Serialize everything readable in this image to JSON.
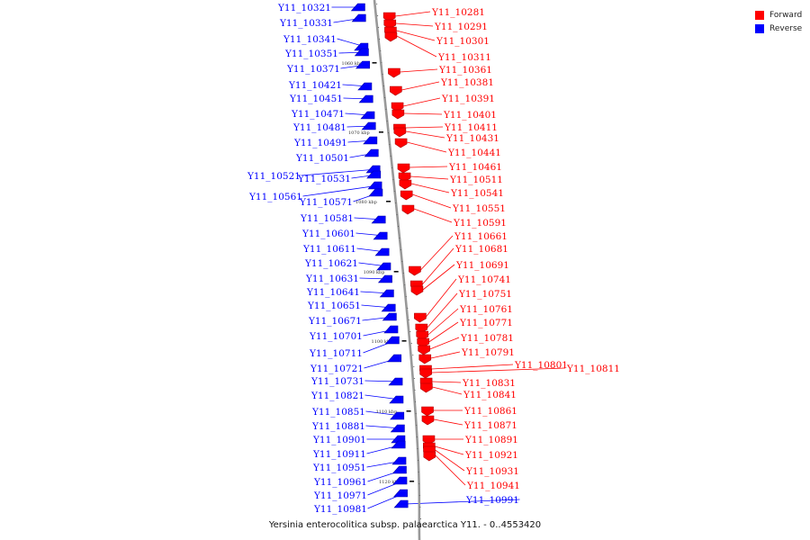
{
  "legend": {
    "forward_label": "Forward",
    "reverse_label": "Reverse",
    "forward_color": "#ff0000",
    "reverse_color": "#0000ff"
  },
  "caption": "Yersinia enterocolitica subsp. palaearctica Y11. - 0..4553420",
  "axis": {
    "tick_labels": [
      "1060 kbp",
      "1070 kbp",
      "1080 kbp",
      "1090 kbp",
      "1100 kbp",
      "1110 kbp",
      "1120 kbp"
    ],
    "backbone_color": "#999999"
  },
  "genes": {
    "reverse": [
      "Y11_10321",
      "Y11_10331",
      "Y11_10341",
      "Y11_10351",
      "Y11_10371",
      "Y11_10421",
      "Y11_10451",
      "Y11_10471",
      "Y11_10481",
      "Y11_10491",
      "Y11_10501",
      "Y11_10521",
      "Y11_10531",
      "Y11_10561",
      "Y11_10571",
      "Y11_10581",
      "Y11_10601",
      "Y11_10611",
      "Y11_10621",
      "Y11_10631",
      "Y11_10641",
      "Y11_10651",
      "Y11_10671",
      "Y11_10701",
      "Y11_10711",
      "Y11_10721",
      "Y11_10731",
      "Y11_10821",
      "Y11_10851",
      "Y11_10881",
      "Y11_10901",
      "Y11_10911",
      "Y11_10951",
      "Y11_10961",
      "Y11_10971",
      "Y11_10981",
      "Y11_10991"
    ],
    "forward": [
      "Y11_10281",
      "Y11_10291",
      "Y11_10301",
      "Y11_10311",
      "Y11_10361",
      "Y11_10381",
      "Y11_10391",
      "Y11_10401",
      "Y11_10411",
      "Y11_10431",
      "Y11_10441",
      "Y11_10461",
      "Y11_10511",
      "Y11_10541",
      "Y11_10551",
      "Y11_10591",
      "Y11_10661",
      "Y11_10681",
      "Y11_10691",
      "Y11_10741",
      "Y11_10751",
      "Y11_10761",
      "Y11_10771",
      "Y11_10781",
      "Y11_10791",
      "Y11_10801",
      "Y11_10811",
      "Y11_10831",
      "Y11_10841",
      "Y11_10861",
      "Y11_10871",
      "Y11_10891",
      "Y11_10921",
      "Y11_10931",
      "Y11_10941"
    ]
  }
}
